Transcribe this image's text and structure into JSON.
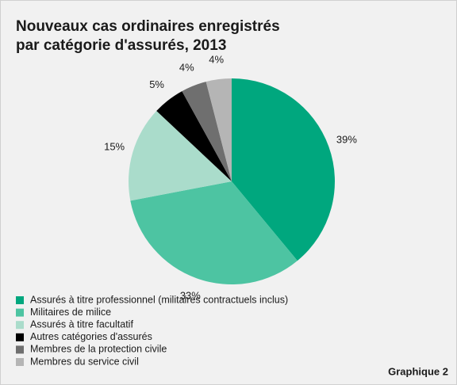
{
  "chart_data": {
    "type": "pie",
    "title": [
      "Nouveaux cas ordinaires enregistrés",
      "par catégorie d'assurés, 2013"
    ],
    "categories": [
      "Assurés à titre professionnel (militaires contractuels inclus)",
      "Militaires de milice",
      "Assurés à titre facultatif",
      "Autres catégories d'assurés",
      "Membres de la protection civile",
      "Membres du service civil"
    ],
    "values": [
      39,
      33,
      15,
      5,
      4,
      4
    ],
    "value_labels": [
      "39%",
      "33%",
      "15%",
      "5%",
      "4%",
      "4%"
    ],
    "colors": [
      "#00a77e",
      "#4dc4a2",
      "#aadccb",
      "#000000",
      "#6f6f6f",
      "#b5b5b5"
    ],
    "annotation": "Graphique 2"
  }
}
